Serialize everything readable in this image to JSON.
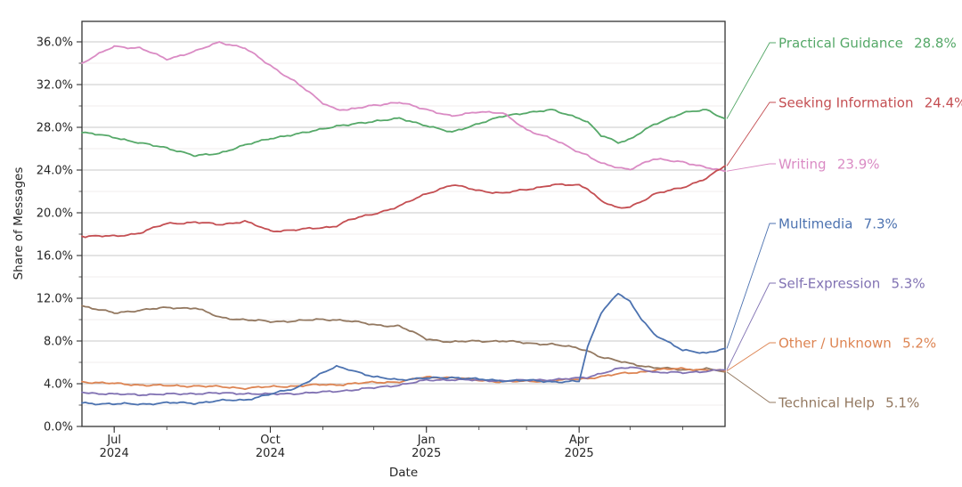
{
  "chart_data": {
    "type": "line",
    "title": "",
    "xlabel": "Date",
    "ylabel": "Share of Messages",
    "ylim": [
      0,
      36
    ],
    "grid": "horizontal-major-and-minor",
    "legend_position": "right-annotations",
    "y_major_ticks": [
      {
        "value": 0,
        "label": "0.0%"
      },
      {
        "value": 4,
        "label": "4.0%"
      },
      {
        "value": 8,
        "label": "8.0%"
      },
      {
        "value": 12,
        "label": "12.0%"
      },
      {
        "value": 16,
        "label": "16.0%"
      },
      {
        "value": 20,
        "label": "20.0%"
      },
      {
        "value": 24,
        "label": "24.0%"
      },
      {
        "value": 28,
        "label": "28.0%"
      },
      {
        "value": 32,
        "label": "32.0%"
      },
      {
        "value": 36,
        "label": "36.0%"
      }
    ],
    "y_minor_tick_values": [
      2,
      6,
      10,
      14,
      18,
      22,
      26,
      30,
      34
    ],
    "x_range_days": 379,
    "x_major_ticks": [
      {
        "t": 19,
        "line1": "Jul",
        "line2": "2024"
      },
      {
        "t": 111,
        "line1": "Oct",
        "line2": "2024"
      },
      {
        "t": 203,
        "line1": "Jan",
        "line2": "2025"
      },
      {
        "t": 293,
        "line1": "Apr",
        "line2": "2025"
      }
    ],
    "x_minor_tick_t": [
      19,
      50,
      81,
      111,
      142,
      172,
      203,
      234,
      262,
      293,
      323,
      354
    ],
    "sample_days": [
      0,
      19,
      34,
      50,
      67,
      81,
      96,
      111,
      126,
      142,
      150,
      157,
      172,
      187,
      203,
      218,
      234,
      248,
      262,
      277,
      293,
      298,
      306,
      316,
      323,
      330,
      337,
      354,
      368,
      379
    ],
    "series": [
      {
        "name": "Practical Guidance",
        "final_label": "28.8%",
        "color": "#55A868",
        "values": [
          27.5,
          27.1,
          26.5,
          26.1,
          25.3,
          25.6,
          26.3,
          27.0,
          27.3,
          27.9,
          28.1,
          28.2,
          28.6,
          28.8,
          28.2,
          27.5,
          28.4,
          29.0,
          29.4,
          29.6,
          28.9,
          28.5,
          27.2,
          26.6,
          26.9,
          27.6,
          28.2,
          29.4,
          29.6,
          28.8
        ]
      },
      {
        "name": "Seeking Information",
        "final_label": "24.4%",
        "color": "#C44E52",
        "values": [
          17.8,
          17.8,
          18.1,
          19.0,
          19.1,
          18.9,
          19.2,
          18.3,
          18.4,
          18.6,
          18.8,
          19.3,
          19.9,
          20.6,
          21.8,
          22.6,
          22.1,
          21.8,
          22.2,
          22.6,
          22.6,
          22.3,
          21.1,
          20.4,
          20.6,
          21.1,
          21.7,
          22.4,
          23.2,
          24.4
        ]
      },
      {
        "name": "Writing",
        "final_label": "23.9%",
        "color": "#DA8BC4",
        "values": [
          34.0,
          35.6,
          35.4,
          34.4,
          35.1,
          36.0,
          35.4,
          33.8,
          32.2,
          30.3,
          29.7,
          29.6,
          30.1,
          30.3,
          29.7,
          29.0,
          29.5,
          29.3,
          27.8,
          26.9,
          25.7,
          25.4,
          24.6,
          24.2,
          24.1,
          24.6,
          25.0,
          24.8,
          24.2,
          23.9
        ]
      },
      {
        "name": "Multimedia",
        "final_label": "7.3%",
        "color": "#4C72B0",
        "values": [
          2.2,
          2.1,
          2.1,
          2.2,
          2.2,
          2.4,
          2.5,
          3.0,
          3.6,
          5.0,
          5.6,
          5.4,
          4.6,
          4.4,
          4.5,
          4.6,
          4.4,
          4.3,
          4.3,
          4.2,
          4.2,
          7.4,
          10.7,
          12.5,
          11.6,
          10.0,
          8.7,
          7.1,
          6.9,
          7.3
        ]
      },
      {
        "name": "Self-Expression",
        "final_label": "5.3%",
        "color": "#8172B3",
        "values": [
          3.2,
          3.0,
          3.0,
          3.0,
          3.1,
          3.1,
          3.1,
          3.0,
          3.1,
          3.2,
          3.3,
          3.4,
          3.6,
          3.9,
          4.3,
          4.4,
          4.3,
          4.3,
          4.3,
          4.4,
          4.5,
          4.6,
          5.0,
          5.4,
          5.5,
          5.4,
          5.1,
          5.0,
          5.2,
          5.3
        ]
      },
      {
        "name": "Other / Unknown",
        "final_label": "5.2%",
        "color": "#DD8452",
        "values": [
          4.2,
          4.0,
          3.9,
          3.8,
          3.8,
          3.7,
          3.6,
          3.7,
          3.8,
          3.9,
          3.9,
          4.0,
          4.1,
          4.2,
          4.6,
          4.6,
          4.3,
          4.2,
          4.2,
          4.3,
          4.4,
          4.5,
          4.7,
          4.9,
          5.0,
          5.1,
          5.3,
          5.4,
          5.3,
          5.2
        ]
      },
      {
        "name": "Technical Help",
        "final_label": "5.1%",
        "color": "#937860",
        "values": [
          11.3,
          10.6,
          10.9,
          11.1,
          11.1,
          10.2,
          10.0,
          9.8,
          9.9,
          10.0,
          10.0,
          9.9,
          9.5,
          9.4,
          8.2,
          7.9,
          8.0,
          8.0,
          7.8,
          7.7,
          7.3,
          7.1,
          6.5,
          6.1,
          5.9,
          5.7,
          5.5,
          5.3,
          5.4,
          5.1
        ]
      }
    ],
    "style": {
      "major_grid_color": "#c9c9c9",
      "minor_grid_color": "#ebe8e8",
      "spine_color": "#333333",
      "tick_label_color": "#262626",
      "background_color": "#ffffff"
    }
  }
}
